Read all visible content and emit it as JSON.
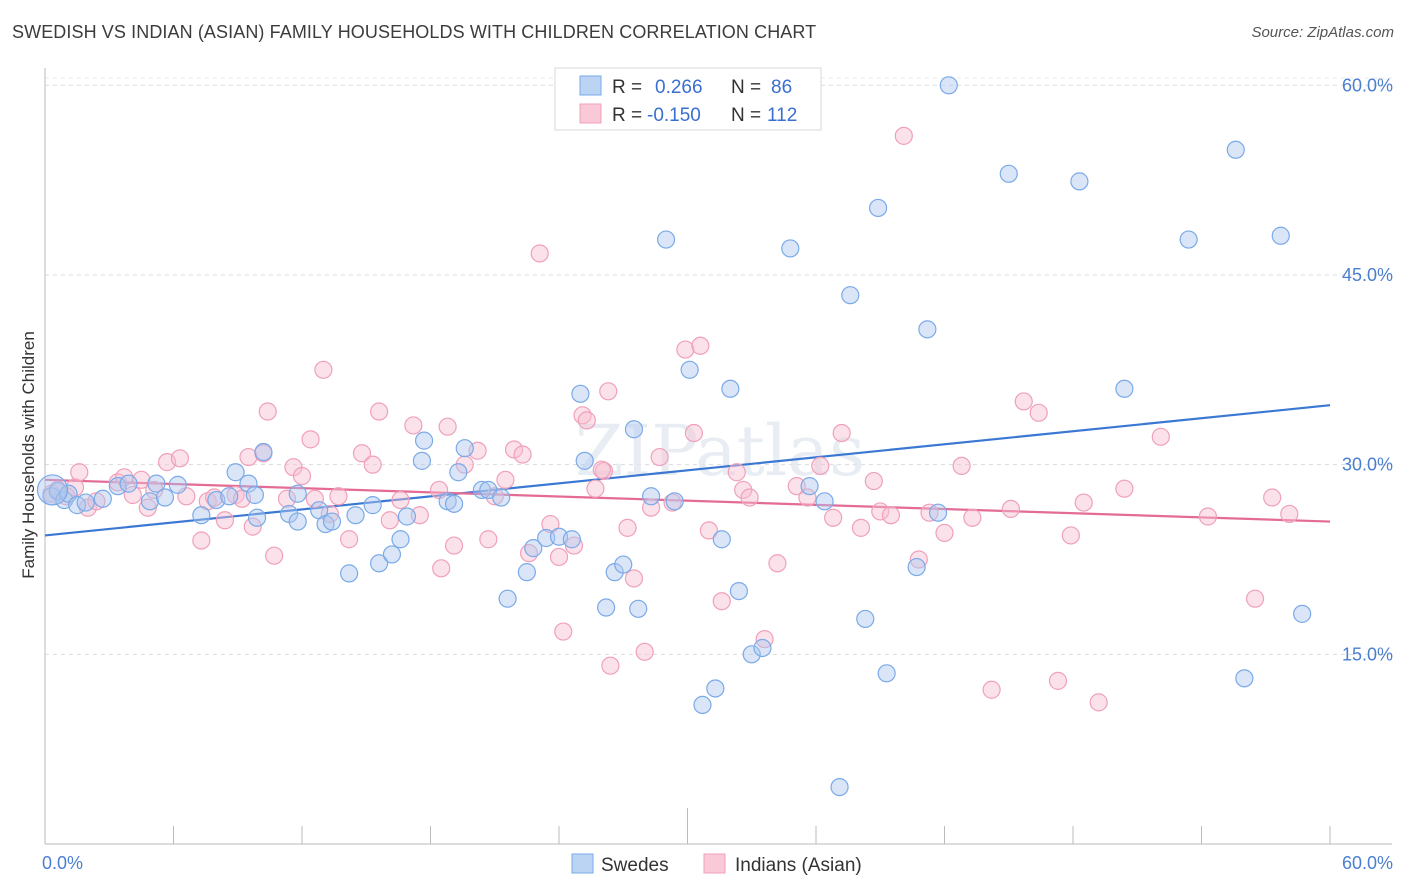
{
  "title": "SWEDISH VS INDIAN (ASIAN) FAMILY HOUSEHOLDS WITH CHILDREN CORRELATION CHART",
  "source": "Source: ZipAtlas.com",
  "watermark": "ZIPatlas",
  "legend_top": {
    "r_label": "R =",
    "n_label": "N =",
    "rows": [
      {
        "r": "0.266",
        "n": "86"
      },
      {
        "r": "-0.150",
        "n": "112"
      }
    ]
  },
  "chart_data": {
    "type": "scatter",
    "title": "SWEDISH VS INDIAN (ASIAN) FAMILY HOUSEHOLDS WITH CHILDREN CORRELATION CHART",
    "xlabel": "",
    "ylabel": "Family Households with Children",
    "xlim": [
      0,
      60
    ],
    "ylim": [
      0,
      62
    ],
    "x_tick_labels": [
      "0.0%",
      "60.0%"
    ],
    "y_ticks": [
      15,
      30,
      45,
      60
    ],
    "y_tick_labels": [
      "15.0%",
      "30.0%",
      "45.0%",
      "60.0%"
    ],
    "grid": true,
    "legend_position": "top-center",
    "colors": {
      "swedes": "#7aaae8",
      "indians": "#f0a0ba",
      "swedes_line": "#3a78d4",
      "indians_line": "#e36b96"
    },
    "series": [
      {
        "name": "Swedes",
        "r": 0.266,
        "n": 86,
        "trend": [
          [
            0,
            24.4
          ],
          [
            60,
            34.7
          ]
        ],
        "points": [
          [
            0.3,
            27.5
          ],
          [
            0.6,
            27.9
          ],
          [
            0.9,
            27.2
          ],
          [
            1.1,
            27.7
          ],
          [
            1.5,
            26.8
          ],
          [
            1.9,
            27.0
          ],
          [
            2.7,
            27.3
          ],
          [
            3.4,
            28.3
          ],
          [
            3.9,
            28.5
          ],
          [
            4.9,
            27.1
          ],
          [
            5.2,
            28.5
          ],
          [
            5.6,
            27.4
          ],
          [
            6.2,
            28.4
          ],
          [
            7.3,
            26.0
          ],
          [
            8.0,
            27.2
          ],
          [
            8.6,
            27.5
          ],
          [
            8.9,
            29.4
          ],
          [
            9.5,
            28.5
          ],
          [
            9.8,
            27.6
          ],
          [
            9.9,
            25.8
          ],
          [
            10.2,
            31.0
          ],
          [
            11.4,
            26.1
          ],
          [
            11.8,
            27.7
          ],
          [
            11.8,
            25.5
          ],
          [
            12.8,
            26.4
          ],
          [
            13.1,
            25.3
          ],
          [
            13.4,
            25.5
          ],
          [
            14.2,
            21.4
          ],
          [
            14.5,
            26.0
          ],
          [
            15.3,
            26.8
          ],
          [
            15.6,
            22.2
          ],
          [
            16.2,
            22.9
          ],
          [
            16.6,
            24.1
          ],
          [
            16.9,
            25.9
          ],
          [
            17.6,
            30.3
          ],
          [
            17.7,
            31.9
          ],
          [
            18.8,
            27.1
          ],
          [
            19.1,
            26.9
          ],
          [
            19.3,
            29.4
          ],
          [
            19.6,
            31.3
          ],
          [
            20.4,
            28.0
          ],
          [
            20.7,
            28.0
          ],
          [
            21.3,
            27.4
          ],
          [
            21.6,
            19.4
          ],
          [
            22.5,
            21.5
          ],
          [
            22.8,
            23.4
          ],
          [
            23.4,
            24.2
          ],
          [
            24.0,
            24.3
          ],
          [
            24.6,
            24.1
          ],
          [
            25.0,
            35.6
          ],
          [
            25.2,
            30.3
          ],
          [
            26.2,
            18.7
          ],
          [
            26.6,
            21.5
          ],
          [
            27.0,
            22.1
          ],
          [
            27.5,
            32.8
          ],
          [
            27.7,
            18.6
          ],
          [
            28.3,
            27.5
          ],
          [
            29.0,
            47.8
          ],
          [
            29.4,
            27.1
          ],
          [
            30.1,
            37.5
          ],
          [
            30.7,
            11.0
          ],
          [
            31.3,
            12.3
          ],
          [
            31.6,
            24.1
          ],
          [
            32.0,
            36.0
          ],
          [
            32.4,
            20.0
          ],
          [
            33.0,
            15.0
          ],
          [
            33.5,
            15.5
          ],
          [
            34.8,
            47.1
          ],
          [
            35.7,
            28.3
          ],
          [
            36.4,
            27.1
          ],
          [
            37.1,
            4.5
          ],
          [
            37.6,
            43.4
          ],
          [
            38.3,
            17.8
          ],
          [
            38.9,
            50.3
          ],
          [
            39.3,
            13.5
          ],
          [
            40.7,
            21.9
          ],
          [
            41.2,
            40.7
          ],
          [
            41.7,
            26.2
          ],
          [
            42.2,
            60.0
          ],
          [
            45.0,
            53.0
          ],
          [
            48.3,
            52.4
          ],
          [
            50.4,
            36.0
          ],
          [
            53.4,
            47.8
          ],
          [
            55.6,
            54.9
          ],
          [
            57.7,
            48.1
          ],
          [
            58.7,
            18.2
          ],
          [
            56.0,
            13.1
          ]
        ]
      },
      {
        "name": "Indians (Asian)",
        "r": -0.15,
        "n": 112,
        "trend": [
          [
            0,
            28.8
          ],
          [
            60,
            25.5
          ]
        ],
        "points": [
          [
            0.3,
            27.7
          ],
          [
            0.6,
            28.0
          ],
          [
            1.0,
            27.5
          ],
          [
            1.4,
            28.2
          ],
          [
            1.6,
            29.4
          ],
          [
            2.0,
            26.6
          ],
          [
            2.4,
            27.1
          ],
          [
            3.4,
            28.6
          ],
          [
            3.7,
            29.0
          ],
          [
            4.1,
            27.6
          ],
          [
            4.5,
            28.8
          ],
          [
            4.8,
            26.6
          ],
          [
            5.1,
            28.0
          ],
          [
            5.7,
            30.2
          ],
          [
            6.3,
            30.5
          ],
          [
            6.6,
            27.5
          ],
          [
            7.3,
            24.0
          ],
          [
            7.6,
            27.1
          ],
          [
            7.9,
            27.4
          ],
          [
            8.4,
            25.6
          ],
          [
            8.9,
            27.6
          ],
          [
            9.2,
            27.3
          ],
          [
            9.5,
            30.6
          ],
          [
            9.7,
            25.1
          ],
          [
            10.2,
            30.9
          ],
          [
            10.4,
            34.2
          ],
          [
            10.7,
            22.8
          ],
          [
            11.3,
            27.3
          ],
          [
            11.6,
            29.8
          ],
          [
            12.0,
            29.1
          ],
          [
            12.4,
            32.0
          ],
          [
            12.6,
            27.3
          ],
          [
            13.0,
            37.5
          ],
          [
            13.3,
            26.1
          ],
          [
            13.7,
            27.5
          ],
          [
            14.2,
            24.1
          ],
          [
            14.8,
            30.9
          ],
          [
            15.3,
            30.0
          ],
          [
            15.6,
            34.2
          ],
          [
            16.1,
            25.6
          ],
          [
            16.6,
            27.2
          ],
          [
            17.2,
            33.1
          ],
          [
            17.5,
            26.0
          ],
          [
            18.4,
            28.0
          ],
          [
            18.8,
            33.0
          ],
          [
            19.1,
            23.6
          ],
          [
            19.6,
            30.0
          ],
          [
            20.2,
            31.1
          ],
          [
            20.7,
            24.1
          ],
          [
            21.0,
            27.5
          ],
          [
            21.5,
            28.8
          ],
          [
            21.9,
            31.2
          ],
          [
            22.3,
            30.8
          ],
          [
            22.6,
            23.0
          ],
          [
            23.1,
            46.7
          ],
          [
            23.6,
            25.3
          ],
          [
            24.0,
            22.7
          ],
          [
            24.2,
            16.8
          ],
          [
            24.7,
            23.6
          ],
          [
            25.1,
            33.9
          ],
          [
            25.3,
            33.5
          ],
          [
            25.7,
            28.1
          ],
          [
            26.1,
            29.5
          ],
          [
            26.3,
            35.8
          ],
          [
            26.4,
            14.1
          ],
          [
            27.2,
            25.0
          ],
          [
            27.5,
            21.0
          ],
          [
            28.0,
            15.2
          ],
          [
            28.3,
            26.6
          ],
          [
            28.7,
            30.6
          ],
          [
            29.3,
            27.0
          ],
          [
            29.9,
            39.1
          ],
          [
            30.3,
            32.5
          ],
          [
            30.6,
            39.4
          ],
          [
            31.0,
            24.8
          ],
          [
            31.6,
            19.2
          ],
          [
            32.3,
            29.4
          ],
          [
            32.6,
            28.0
          ],
          [
            32.9,
            27.4
          ],
          [
            33.6,
            16.2
          ],
          [
            34.2,
            22.2
          ],
          [
            35.1,
            28.3
          ],
          [
            35.6,
            27.4
          ],
          [
            36.2,
            29.9
          ],
          [
            36.8,
            25.8
          ],
          [
            37.2,
            32.5
          ],
          [
            38.1,
            25.0
          ],
          [
            38.7,
            28.7
          ],
          [
            39.0,
            26.3
          ],
          [
            39.5,
            26.0
          ],
          [
            40.1,
            56.0
          ],
          [
            40.8,
            22.5
          ],
          [
            41.3,
            26.2
          ],
          [
            42.0,
            24.6
          ],
          [
            42.8,
            29.9
          ],
          [
            43.3,
            25.8
          ],
          [
            44.2,
            12.2
          ],
          [
            45.1,
            26.5
          ],
          [
            45.7,
            35.0
          ],
          [
            46.4,
            34.1
          ],
          [
            47.3,
            12.9
          ],
          [
            47.9,
            24.4
          ],
          [
            48.5,
            27.0
          ],
          [
            49.2,
            11.2
          ],
          [
            50.4,
            28.1
          ],
          [
            52.1,
            32.2
          ],
          [
            54.3,
            25.9
          ],
          [
            56.5,
            19.4
          ],
          [
            57.3,
            27.4
          ],
          [
            58.1,
            26.1
          ],
          [
            26.0,
            29.6
          ],
          [
            18.5,
            21.8
          ]
        ]
      }
    ]
  },
  "bottom_legend": [
    "Swedes",
    "Indians (Asian)"
  ]
}
